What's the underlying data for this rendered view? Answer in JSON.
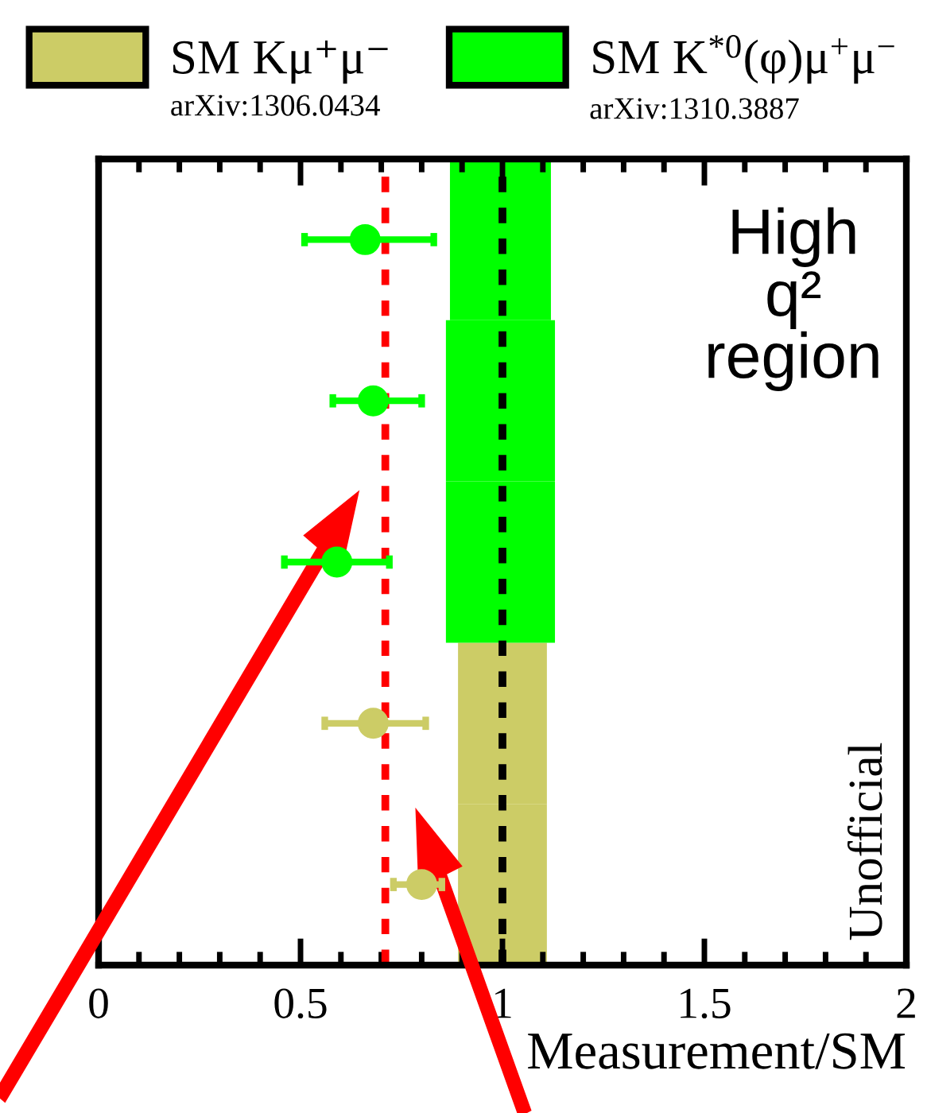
{
  "chart_data": {
    "type": "bar",
    "orientation": "horizontal",
    "categories": [
      null,
      null,
      null,
      null,
      null
    ],
    "series": [
      {
        "name": "SM Kμ⁺μ⁻",
        "color": "#cccc66",
        "base": [
          null,
          null,
          null,
          0.89,
          0.89
        ],
        "values": [
          null,
          null,
          null,
          0.22,
          0.22
        ]
      },
      {
        "name": "SM K$^{*0}$(φ)μ$^{+}$μ$^{−}$",
        "color": "#00ff00",
        "base": [
          0.87,
          0.86,
          0.86,
          null,
          null
        ],
        "values": [
          0.25,
          0.27,
          0.27,
          null,
          null
        ]
      },
      {
        "type": "scatter",
        "colors": [
          "#00ff00",
          "#00ff00",
          "#00ff00",
          "#cccc66",
          "#cccc66"
        ],
        "values": [
          0.66,
          0.68,
          0.59,
          0.68,
          0.8
        ],
        "errors": [
          [
            0.51,
            0.83
          ],
          [
            0.58,
            0.8
          ],
          [
            0.46,
            0.72
          ],
          [
            0.56,
            0.81
          ],
          [
            0.73,
            0.85
          ]
        ],
        "marker": "circle"
      }
    ],
    "xlim": [
      0,
      2
    ],
    "xticks": [
      0,
      0.5,
      1,
      1.5,
      2
    ],
    "tick_labels": "x",
    "xlabel": "Measurement/SM",
    "ref_lines": [
      {
        "axis": "x",
        "value": 1,
        "color": "#000000",
        "line_style": "dashed"
      },
      {
        "axis": "x",
        "value": 0.71,
        "color": "#ff0000",
        "line_style": "dashed"
      }
    ],
    "legend": "top",
    "annotations": [
      "arXiv:1306.0434",
      "arXiv:1310.3887",
      "High q² region",
      "Unofficial"
    ]
  }
}
